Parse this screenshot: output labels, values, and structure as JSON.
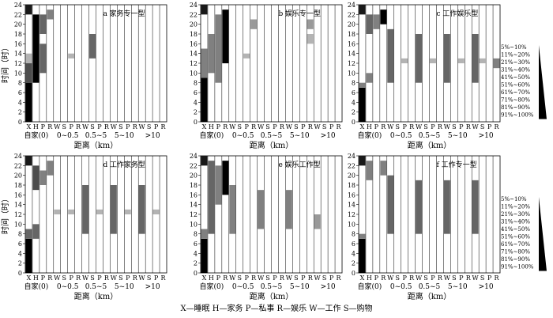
{
  "caption": "X—睡眠  H—家务  P—私事  R—娱乐  W—工作  S—购物",
  "legend": [
    "5%~10%",
    "11%~20%",
    "21%~30%",
    "31%~40%",
    "41%~50%",
    "51%~60%",
    "61%~70%",
    "71%~80%",
    "81%~90%",
    "91%~100%"
  ],
  "chart_data": [
    {
      "type": "heatmap",
      "title": "a 家务专一型",
      "ylabel": "时间（时）",
      "xlabel": "距离（km）",
      "ylim": [
        0,
        24
      ],
      "yticks": [
        0,
        2,
        4,
        6,
        8,
        10,
        12,
        14,
        16,
        18,
        20,
        22,
        24
      ],
      "categories": [
        "X",
        "H",
        "P",
        "R",
        "W",
        "S",
        "P",
        "R",
        "W",
        "S",
        "P",
        "R",
        "W",
        "S",
        "P",
        "R",
        "W",
        "S",
        "P",
        "R"
      ],
      "groups": [
        "自家(0)",
        "0~0.5",
        "0.5~5",
        "5~10",
        ">10"
      ],
      "intensity_scale": "5%~100%",
      "blocks": [
        {
          "col": 0,
          "from": 0,
          "to": 8,
          "level": 1.0
        },
        {
          "col": 0,
          "from": 8,
          "to": 12,
          "level": 0.7
        },
        {
          "col": 0,
          "from": 12,
          "to": 14,
          "level": 0.3
        },
        {
          "col": 0,
          "from": 22,
          "to": 24,
          "level": 0.9
        },
        {
          "col": 1,
          "from": 8,
          "to": 22,
          "level": 1.0
        },
        {
          "col": 2,
          "from": 10,
          "to": 16,
          "level": 0.6
        },
        {
          "col": 2,
          "from": 18,
          "to": 22,
          "level": 0.6
        },
        {
          "col": 3,
          "from": 21,
          "to": 23,
          "level": 0.5
        },
        {
          "col": 6,
          "from": 13,
          "to": 14,
          "level": 0.3
        },
        {
          "col": 9,
          "from": 13,
          "to": 18,
          "level": 0.6
        }
      ]
    },
    {
      "type": "heatmap",
      "title": "b 娱乐专一型",
      "ylabel": "",
      "xlabel": "距离（km）",
      "ylim": [
        0,
        24
      ],
      "yticks": [
        0,
        2,
        4,
        6,
        8,
        10,
        12,
        14,
        16,
        18,
        20,
        22,
        24
      ],
      "categories": [
        "X",
        "H",
        "P",
        "R",
        "W",
        "S",
        "P",
        "R",
        "W",
        "S",
        "P",
        "R",
        "W",
        "S",
        "P",
        "R",
        "W",
        "S",
        "P",
        "R"
      ],
      "groups": [
        "自家(0)",
        "0~0.5",
        "0.5~5",
        "5~10",
        ">10"
      ],
      "intensity_scale": "5%~100%",
      "blocks": [
        {
          "col": 0,
          "from": 0,
          "to": 9,
          "level": 1.0
        },
        {
          "col": 0,
          "from": 9,
          "to": 15,
          "level": 0.5
        },
        {
          "col": 0,
          "from": 22,
          "to": 24,
          "level": 0.9
        },
        {
          "col": 1,
          "from": 10,
          "to": 18,
          "level": 0.5
        },
        {
          "col": 2,
          "from": 8,
          "to": 22,
          "level": 0.5
        },
        {
          "col": 3,
          "from": 12,
          "to": 23,
          "level": 1.0
        },
        {
          "col": 6,
          "from": 13,
          "to": 14,
          "level": 0.3
        },
        {
          "col": 7,
          "from": 19,
          "to": 21,
          "level": 0.4
        },
        {
          "col": 15,
          "from": 19,
          "to": 21,
          "level": 0.4
        },
        {
          "col": 15,
          "from": 16,
          "to": 18,
          "level": 0.3
        }
      ]
    },
    {
      "type": "heatmap",
      "title": "c 工作娱乐型",
      "ylabel": "",
      "xlabel": "距离（km）",
      "ylim": [
        0,
        24
      ],
      "yticks": [
        0,
        2,
        4,
        6,
        8,
        10,
        12,
        14,
        16,
        18,
        20,
        22,
        24
      ],
      "categories": [
        "X",
        "H",
        "P",
        "R",
        "W",
        "S",
        "P",
        "R",
        "W",
        "S",
        "P",
        "R",
        "W",
        "S",
        "P",
        "R",
        "W",
        "S",
        "P",
        "R"
      ],
      "groups": [
        "自家(0)",
        "0~0.5",
        "0.5~5",
        "5~10",
        ">10"
      ],
      "intensity_scale": "5%~100%",
      "blocks": [
        {
          "col": 0,
          "from": 0,
          "to": 7,
          "level": 1.0
        },
        {
          "col": 0,
          "from": 7,
          "to": 8,
          "level": 0.5
        },
        {
          "col": 0,
          "from": 22,
          "to": 24,
          "level": 0.9
        },
        {
          "col": 1,
          "from": 18,
          "to": 22,
          "level": 0.6
        },
        {
          "col": 1,
          "from": 8,
          "to": 10,
          "level": 0.5
        },
        {
          "col": 2,
          "from": 19,
          "to": 22,
          "level": 0.5
        },
        {
          "col": 3,
          "from": 20,
          "to": 23,
          "level": 1.0
        },
        {
          "col": 4,
          "from": 8,
          "to": 19,
          "level": 0.6
        },
        {
          "col": 6,
          "from": 12,
          "to": 13,
          "level": 0.3
        },
        {
          "col": 8,
          "from": 8,
          "to": 18,
          "level": 0.6
        },
        {
          "col": 10,
          "from": 12,
          "to": 13,
          "level": 0.3
        },
        {
          "col": 12,
          "from": 8,
          "to": 18,
          "level": 0.6
        },
        {
          "col": 14,
          "from": 12,
          "to": 13,
          "level": 0.3
        },
        {
          "col": 16,
          "from": 8,
          "to": 18,
          "level": 0.6
        },
        {
          "col": 17,
          "from": 12,
          "to": 13,
          "level": 0.3
        },
        {
          "col": 19,
          "from": 11,
          "to": 13,
          "level": 0.5
        }
      ]
    },
    {
      "type": "heatmap",
      "title": "d 工作家务型",
      "ylabel": "时间（时）",
      "xlabel": "距离（km）",
      "ylim": [
        0,
        24
      ],
      "yticks": [
        0,
        2,
        4,
        6,
        8,
        10,
        12,
        14,
        16,
        18,
        20,
        22,
        24
      ],
      "categories": [
        "X",
        "H",
        "P",
        "R",
        "W",
        "S",
        "P",
        "R",
        "W",
        "S",
        "P",
        "R",
        "W",
        "S",
        "P",
        "R",
        "W",
        "S",
        "P",
        "R"
      ],
      "groups": [
        "自家(0)",
        "0~0.5",
        "0.5~5",
        "5~10",
        ">10"
      ],
      "intensity_scale": "5%~100%",
      "blocks": [
        {
          "col": 0,
          "from": 0,
          "to": 7,
          "level": 1.0
        },
        {
          "col": 0,
          "from": 7,
          "to": 9,
          "level": 0.6
        },
        {
          "col": 0,
          "from": 22,
          "to": 24,
          "level": 0.9
        },
        {
          "col": 1,
          "from": 17,
          "to": 22,
          "level": 0.7
        },
        {
          "col": 1,
          "from": 7,
          "to": 10,
          "level": 0.6
        },
        {
          "col": 2,
          "from": 18,
          "to": 21,
          "level": 0.5
        },
        {
          "col": 3,
          "from": 20,
          "to": 23,
          "level": 0.5
        },
        {
          "col": 4,
          "from": 12,
          "to": 13,
          "level": 0.3
        },
        {
          "col": 6,
          "from": 12,
          "to": 13,
          "level": 0.3
        },
        {
          "col": 8,
          "from": 8,
          "to": 18,
          "level": 0.6
        },
        {
          "col": 10,
          "from": 12,
          "to": 13,
          "level": 0.3
        },
        {
          "col": 12,
          "from": 8,
          "to": 18,
          "level": 0.6
        },
        {
          "col": 14,
          "from": 12,
          "to": 13,
          "level": 0.3
        },
        {
          "col": 16,
          "from": 8,
          "to": 18,
          "level": 0.6
        },
        {
          "col": 18,
          "from": 12,
          "to": 13,
          "level": 0.3
        }
      ]
    },
    {
      "type": "heatmap",
      "title": "e 娱乐工作型",
      "ylabel": "",
      "xlabel": "距离（km）",
      "ylim": [
        0,
        24
      ],
      "yticks": [
        0,
        2,
        4,
        6,
        8,
        10,
        12,
        14,
        16,
        18,
        20,
        22,
        24
      ],
      "categories": [
        "X",
        "H",
        "P",
        "R",
        "W",
        "S",
        "P",
        "R",
        "W",
        "S",
        "P",
        "R",
        "W",
        "S",
        "P",
        "R",
        "W",
        "S",
        "P",
        "R"
      ],
      "groups": [
        "自家(0)",
        "0~0.5",
        "0.5~5",
        "5~10",
        ">10"
      ],
      "intensity_scale": "5%~100%",
      "blocks": [
        {
          "col": 0,
          "from": 0,
          "to": 7,
          "level": 1.0
        },
        {
          "col": 0,
          "from": 7,
          "to": 9,
          "level": 0.5
        },
        {
          "col": 0,
          "from": 22,
          "to": 24,
          "level": 0.9
        },
        {
          "col": 1,
          "from": 8,
          "to": 23,
          "level": 0.6
        },
        {
          "col": 2,
          "from": 14,
          "to": 22,
          "level": 0.5
        },
        {
          "col": 3,
          "from": 16,
          "to": 23,
          "level": 1.0
        },
        {
          "col": 4,
          "from": 8,
          "to": 18,
          "level": 0.5
        },
        {
          "col": 8,
          "from": 9,
          "to": 17,
          "level": 0.5
        },
        {
          "col": 12,
          "from": 9,
          "to": 17,
          "level": 0.5
        },
        {
          "col": 16,
          "from": 9,
          "to": 12,
          "level": 0.4
        }
      ]
    },
    {
      "type": "heatmap",
      "title": "f 工作专一型",
      "ylabel": "",
      "xlabel": "距离（km）",
      "ylim": [
        0,
        24
      ],
      "yticks": [
        0,
        2,
        4,
        6,
        8,
        10,
        12,
        14,
        16,
        18,
        20,
        22,
        24
      ],
      "categories": [
        "X",
        "H",
        "P",
        "R",
        "W",
        "S",
        "P",
        "R",
        "W",
        "S",
        "P",
        "R",
        "W",
        "S",
        "P",
        "R",
        "W",
        "S",
        "P",
        "R"
      ],
      "groups": [
        "自家(0)",
        "0~0.5",
        "0.5~5",
        "5~10",
        ">10"
      ],
      "intensity_scale": "5%~100%",
      "blocks": [
        {
          "col": 0,
          "from": 0,
          "to": 7,
          "level": 1.0
        },
        {
          "col": 0,
          "from": 7,
          "to": 8,
          "level": 0.5
        },
        {
          "col": 0,
          "from": 22,
          "to": 24,
          "level": 0.9
        },
        {
          "col": 1,
          "from": 19,
          "to": 23,
          "level": 0.5
        },
        {
          "col": 3,
          "from": 20,
          "to": 23,
          "level": 0.5
        },
        {
          "col": 4,
          "from": 8,
          "to": 20,
          "level": 0.6
        },
        {
          "col": 8,
          "from": 8,
          "to": 19,
          "level": 0.6
        },
        {
          "col": 12,
          "from": 8,
          "to": 19,
          "level": 0.6
        },
        {
          "col": 16,
          "from": 8,
          "to": 19,
          "level": 0.6
        }
      ]
    }
  ]
}
